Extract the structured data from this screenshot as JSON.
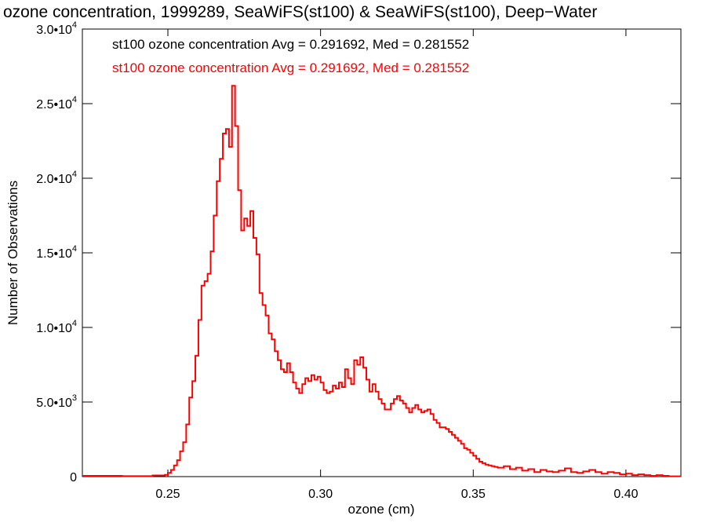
{
  "chart_data": {
    "type": "line",
    "title": "ozone concentration, 1999289, SeaWiFS(st100) & SeaWiFS(st100), Deep−Water",
    "xlabel": "ozone (cm)",
    "ylabel": "Number of Observations",
    "xlim": [
      0.222,
      0.418
    ],
    "ylim": [
      0,
      30000
    ],
    "x_ticks": [
      {
        "value": 0.25,
        "label": "0.25"
      },
      {
        "value": 0.3,
        "label": "0.30"
      },
      {
        "value": 0.35,
        "label": "0.35"
      },
      {
        "value": 0.4,
        "label": "0.40"
      }
    ],
    "y_ticks": [
      {
        "value": 0,
        "mantissa": "0",
        "exponent": ""
      },
      {
        "value": 5000,
        "mantissa": "5.0•10",
        "exponent": "3"
      },
      {
        "value": 10000,
        "mantissa": "1.0•10",
        "exponent": "4"
      },
      {
        "value": 15000,
        "mantissa": "1.5•10",
        "exponent": "4"
      },
      {
        "value": 20000,
        "mantissa": "2.0•10",
        "exponent": "4"
      },
      {
        "value": 25000,
        "mantissa": "2.5•10",
        "exponent": "4"
      },
      {
        "value": 30000,
        "mantissa": "3.0•10",
        "exponent": "4"
      }
    ],
    "annotations": [
      {
        "text": "st100 ozone concentration Avg = 0.291692, Med = 0.281552",
        "color": "#000000"
      },
      {
        "text": "st100 ozone concentration Avg = 0.291692, Med = 0.281552",
        "color": "#ff0000"
      }
    ],
    "step": "histogram",
    "series": [
      {
        "color": "#ff0000",
        "points": [
          [
            0.222,
            50
          ],
          [
            0.235,
            30
          ],
          [
            0.245,
            80
          ],
          [
            0.249,
            120
          ],
          [
            0.25,
            250
          ],
          [
            0.251,
            450
          ],
          [
            0.252,
            750
          ],
          [
            0.253,
            1100
          ],
          [
            0.254,
            1700
          ],
          [
            0.255,
            2300
          ],
          [
            0.256,
            3500
          ],
          [
            0.257,
            5300
          ],
          [
            0.258,
            6400
          ],
          [
            0.259,
            8100
          ],
          [
            0.26,
            10500
          ],
          [
            0.261,
            12800
          ],
          [
            0.262,
            13100
          ],
          [
            0.263,
            13600
          ],
          [
            0.264,
            15100
          ],
          [
            0.265,
            17500
          ],
          [
            0.266,
            19800
          ],
          [
            0.267,
            21300
          ],
          [
            0.268,
            23000
          ],
          [
            0.269,
            23300
          ],
          [
            0.27,
            22100
          ],
          [
            0.271,
            26200
          ],
          [
            0.272,
            23500
          ],
          [
            0.273,
            19200
          ],
          [
            0.274,
            16500
          ],
          [
            0.275,
            17300
          ],
          [
            0.276,
            16800
          ],
          [
            0.277,
            17800
          ],
          [
            0.278,
            16000
          ],
          [
            0.279,
            14900
          ],
          [
            0.28,
            12300
          ],
          [
            0.281,
            11500
          ],
          [
            0.282,
            10800
          ],
          [
            0.283,
            9600
          ],
          [
            0.284,
            9200
          ],
          [
            0.285,
            8400
          ],
          [
            0.286,
            7800
          ],
          [
            0.287,
            7200
          ],
          [
            0.288,
            7000
          ],
          [
            0.289,
            7600
          ],
          [
            0.29,
            7000
          ],
          [
            0.291,
            6300
          ],
          [
            0.292,
            5900
          ],
          [
            0.293,
            5600
          ],
          [
            0.294,
            6200
          ],
          [
            0.295,
            6600
          ],
          [
            0.296,
            6400
          ],
          [
            0.297,
            6800
          ],
          [
            0.298,
            6500
          ],
          [
            0.299,
            6700
          ],
          [
            0.3,
            6300
          ],
          [
            0.301,
            5800
          ],
          [
            0.302,
            5600
          ],
          [
            0.303,
            5700
          ],
          [
            0.304,
            6100
          ],
          [
            0.305,
            5900
          ],
          [
            0.306,
            6300
          ],
          [
            0.307,
            6000
          ],
          [
            0.308,
            7200
          ],
          [
            0.309,
            6600
          ],
          [
            0.31,
            6200
          ],
          [
            0.311,
            7800
          ],
          [
            0.312,
            7500
          ],
          [
            0.313,
            8000
          ],
          [
            0.314,
            7300
          ],
          [
            0.315,
            6500
          ],
          [
            0.316,
            5700
          ],
          [
            0.317,
            6200
          ],
          [
            0.318,
            5700
          ],
          [
            0.319,
            5200
          ],
          [
            0.32,
            4900
          ],
          [
            0.321,
            4500
          ],
          [
            0.322,
            4500
          ],
          [
            0.323,
            4900
          ],
          [
            0.324,
            5200
          ],
          [
            0.325,
            5400
          ],
          [
            0.326,
            5100
          ],
          [
            0.327,
            4900
          ],
          [
            0.328,
            4600
          ],
          [
            0.329,
            4300
          ],
          [
            0.33,
            4600
          ],
          [
            0.331,
            4800
          ],
          [
            0.332,
            4500
          ],
          [
            0.333,
            4300
          ],
          [
            0.334,
            4400
          ],
          [
            0.335,
            4500
          ],
          [
            0.336,
            4200
          ],
          [
            0.337,
            3800
          ],
          [
            0.338,
            3600
          ],
          [
            0.339,
            3300
          ],
          [
            0.34,
            3300
          ],
          [
            0.341,
            3200
          ],
          [
            0.342,
            3000
          ],
          [
            0.343,
            2800
          ],
          [
            0.344,
            2600
          ],
          [
            0.345,
            2400
          ],
          [
            0.346,
            2200
          ],
          [
            0.347,
            1900
          ],
          [
            0.348,
            1800
          ],
          [
            0.349,
            1600
          ],
          [
            0.35,
            1400
          ],
          [
            0.351,
            1200
          ],
          [
            0.352,
            1000
          ],
          [
            0.353,
            900
          ],
          [
            0.354,
            800
          ],
          [
            0.355,
            750
          ],
          [
            0.356,
            700
          ],
          [
            0.357,
            650
          ],
          [
            0.358,
            600
          ],
          [
            0.36,
            700
          ],
          [
            0.362,
            500
          ],
          [
            0.364,
            600
          ],
          [
            0.366,
            400
          ],
          [
            0.368,
            500
          ],
          [
            0.37,
            300
          ],
          [
            0.372,
            450
          ],
          [
            0.374,
            350
          ],
          [
            0.376,
            300
          ],
          [
            0.378,
            400
          ],
          [
            0.38,
            550
          ],
          [
            0.382,
            300
          ],
          [
            0.384,
            250
          ],
          [
            0.386,
            350
          ],
          [
            0.388,
            450
          ],
          [
            0.39,
            300
          ],
          [
            0.392,
            200
          ],
          [
            0.394,
            300
          ],
          [
            0.396,
            250
          ],
          [
            0.398,
            150
          ],
          [
            0.4,
            200
          ],
          [
            0.402,
            100
          ],
          [
            0.404,
            150
          ],
          [
            0.406,
            100
          ],
          [
            0.408,
            50
          ],
          [
            0.41,
            100
          ],
          [
            0.412,
            50
          ],
          [
            0.414,
            20
          ],
          [
            0.418,
            20
          ]
        ]
      }
    ]
  }
}
